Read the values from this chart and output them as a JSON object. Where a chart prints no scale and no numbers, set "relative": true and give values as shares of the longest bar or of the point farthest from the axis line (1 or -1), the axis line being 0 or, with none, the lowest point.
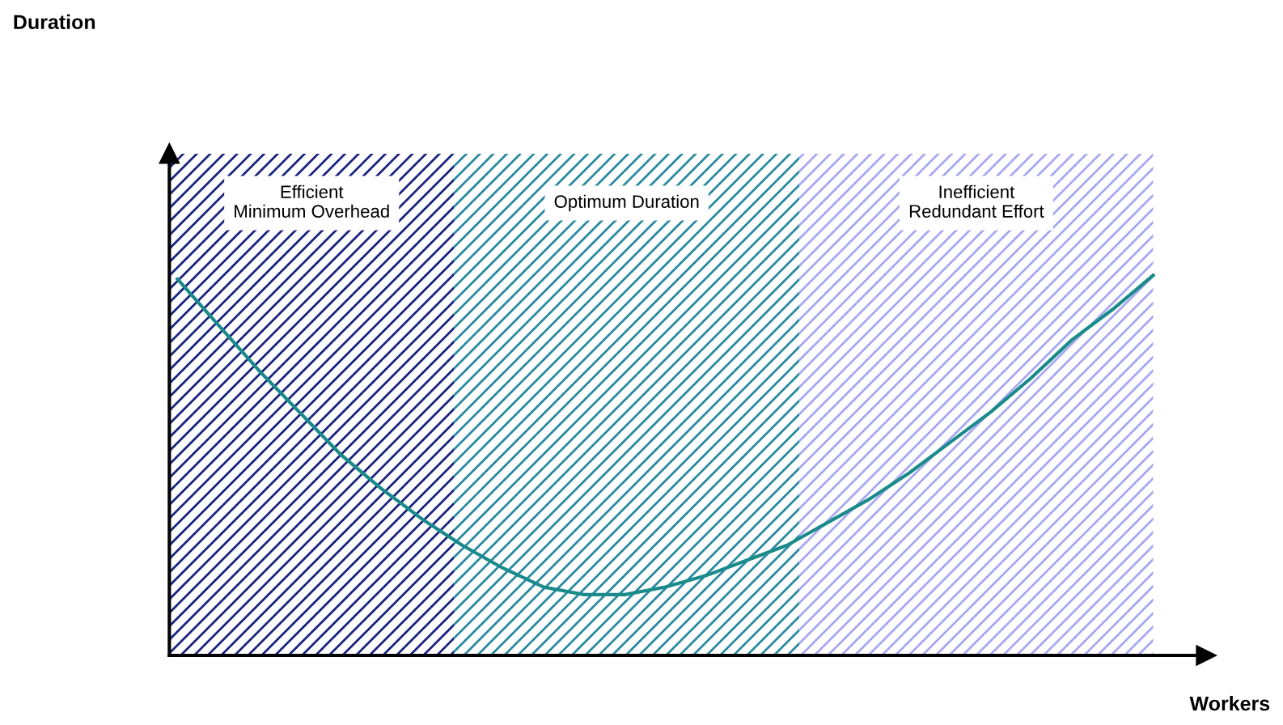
{
  "chart_data": {
    "type": "line",
    "relative": true,
    "xlabel": "Workers",
    "categories": [
      null,
      null,
      null,
      null,
      null,
      null,
      null,
      null,
      null,
      null,
      null,
      null,
      null,
      null,
      null,
      null,
      null,
      null,
      null,
      null,
      null,
      null,
      null,
      null,
      null
    ],
    "series": [
      {
        "color": "#1a8a8a",
        "values": [
          0.99,
          0.87,
          0.75,
          0.64,
          0.53,
          0.44,
          0.36,
          0.29,
          0.23,
          0.18,
          0.16,
          0.16,
          0.18,
          0.21,
          0.25,
          0.29,
          0.35,
          0.41,
          0.48,
          0.56,
          0.64,
          0.73,
          0.83,
          0.91,
          1
        ]
      }
    ],
    "annotations": [
      "Efficient\nMinimum Overhead",
      "Optimum Duration",
      "Inefficient\nRedundant Effort",
      "Duration"
    ],
    "marker": "none",
    "line_style": "solid",
    "legend": false
  }
}
